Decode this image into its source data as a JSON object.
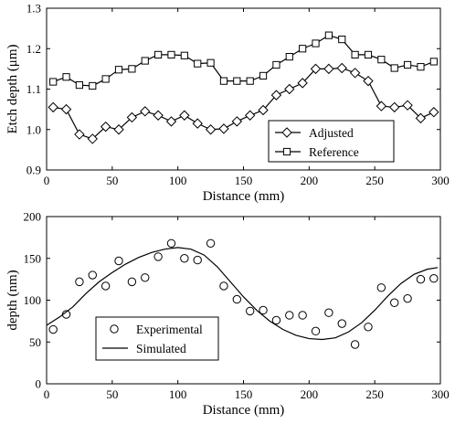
{
  "chart_data": [
    {
      "type": "line",
      "xlabel": "Distance (mm)",
      "ylabel": "Etch depth (μm)",
      "xlim": [
        0,
        300
      ],
      "ylim": [
        0.9,
        1.3
      ],
      "xticks": [
        0,
        50,
        100,
        150,
        200,
        250,
        300
      ],
      "yticks": [
        0.9,
        1.0,
        1.1,
        1.2,
        1.3
      ],
      "xtick_labels": [
        "0",
        "50",
        "100",
        "150",
        "200",
        "250",
        "300"
      ],
      "ytick_labels": [
        "0.9",
        "1.0",
        "1.1",
        "1.2",
        "1.3"
      ],
      "grid": false,
      "legend_position": "lower-right",
      "series": [
        {
          "name": "Adjusted",
          "marker": "diamond",
          "x": [
            5,
            15,
            25,
            35,
            45,
            55,
            65,
            75,
            85,
            95,
            105,
            115,
            125,
            135,
            145,
            155,
            165,
            175,
            185,
            195,
            205,
            215,
            225,
            235,
            245,
            255,
            265,
            275,
            285,
            295
          ],
          "y": [
            1.055,
            1.05,
            0.988,
            0.977,
            1.007,
            1.0,
            1.03,
            1.045,
            1.035,
            1.02,
            1.035,
            1.015,
            1.0,
            1.002,
            1.02,
            1.035,
            1.048,
            1.085,
            1.1,
            1.115,
            1.15,
            1.15,
            1.152,
            1.14,
            1.12,
            1.058,
            1.055,
            1.06,
            1.028,
            1.043
          ]
        },
        {
          "name": "Reference",
          "marker": "square",
          "x": [
            5,
            15,
            25,
            35,
            45,
            55,
            65,
            75,
            85,
            95,
            105,
            115,
            125,
            135,
            145,
            155,
            165,
            175,
            185,
            195,
            205,
            215,
            225,
            235,
            245,
            255,
            265,
            275,
            285,
            295
          ],
          "y": [
            1.118,
            1.13,
            1.11,
            1.108,
            1.125,
            1.148,
            1.15,
            1.17,
            1.185,
            1.185,
            1.183,
            1.163,
            1.165,
            1.12,
            1.12,
            1.12,
            1.133,
            1.16,
            1.18,
            1.2,
            1.213,
            1.233,
            1.223,
            1.185,
            1.185,
            1.173,
            1.152,
            1.16,
            1.155,
            1.168
          ]
        }
      ]
    },
    {
      "type": "line",
      "xlabel": "Distance (mm)",
      "ylabel": "depth (nm)",
      "xlim": [
        0,
        300
      ],
      "ylim": [
        0,
        200
      ],
      "xticks": [
        0,
        50,
        100,
        150,
        200,
        250,
        300
      ],
      "yticks": [
        0,
        50,
        100,
        150,
        200
      ],
      "xtick_labels": [
        "0",
        "50",
        "100",
        "150",
        "200",
        "250",
        "300"
      ],
      "ytick_labels": [
        "0",
        "50",
        "100",
        "150",
        "200"
      ],
      "grid": false,
      "legend_position": "lower-left",
      "series": [
        {
          "name": "Experimental",
          "style": "scatter",
          "marker": "circle",
          "x": [
            5,
            15,
            25,
            35,
            45,
            55,
            65,
            75,
            85,
            95,
            105,
            115,
            125,
            135,
            145,
            155,
            165,
            175,
            185,
            195,
            205,
            215,
            225,
            235,
            245,
            255,
            265,
            275,
            285,
            295
          ],
          "y": [
            65,
            83,
            122,
            130,
            117,
            147,
            122,
            127,
            152,
            168,
            150,
            148,
            168,
            117,
            101,
            87,
            88,
            76,
            82,
            82,
            63,
            85,
            72,
            47,
            68,
            115,
            97,
            102,
            125,
            126
          ]
        },
        {
          "name": "Simulated",
          "style": "line",
          "x": [
            0,
            10,
            20,
            30,
            40,
            50,
            60,
            70,
            80,
            90,
            100,
            110,
            120,
            130,
            140,
            150,
            160,
            170,
            180,
            190,
            200,
            210,
            220,
            230,
            240,
            250,
            260,
            270,
            280,
            290,
            298
          ],
          "y": [
            70,
            80,
            92,
            108,
            122,
            133,
            143,
            151,
            157,
            161,
            163,
            161,
            154,
            140,
            122,
            104,
            88,
            75,
            65,
            58,
            54,
            53,
            55,
            62,
            73,
            88,
            105,
            120,
            131,
            137,
            139
          ]
        }
      ]
    }
  ]
}
